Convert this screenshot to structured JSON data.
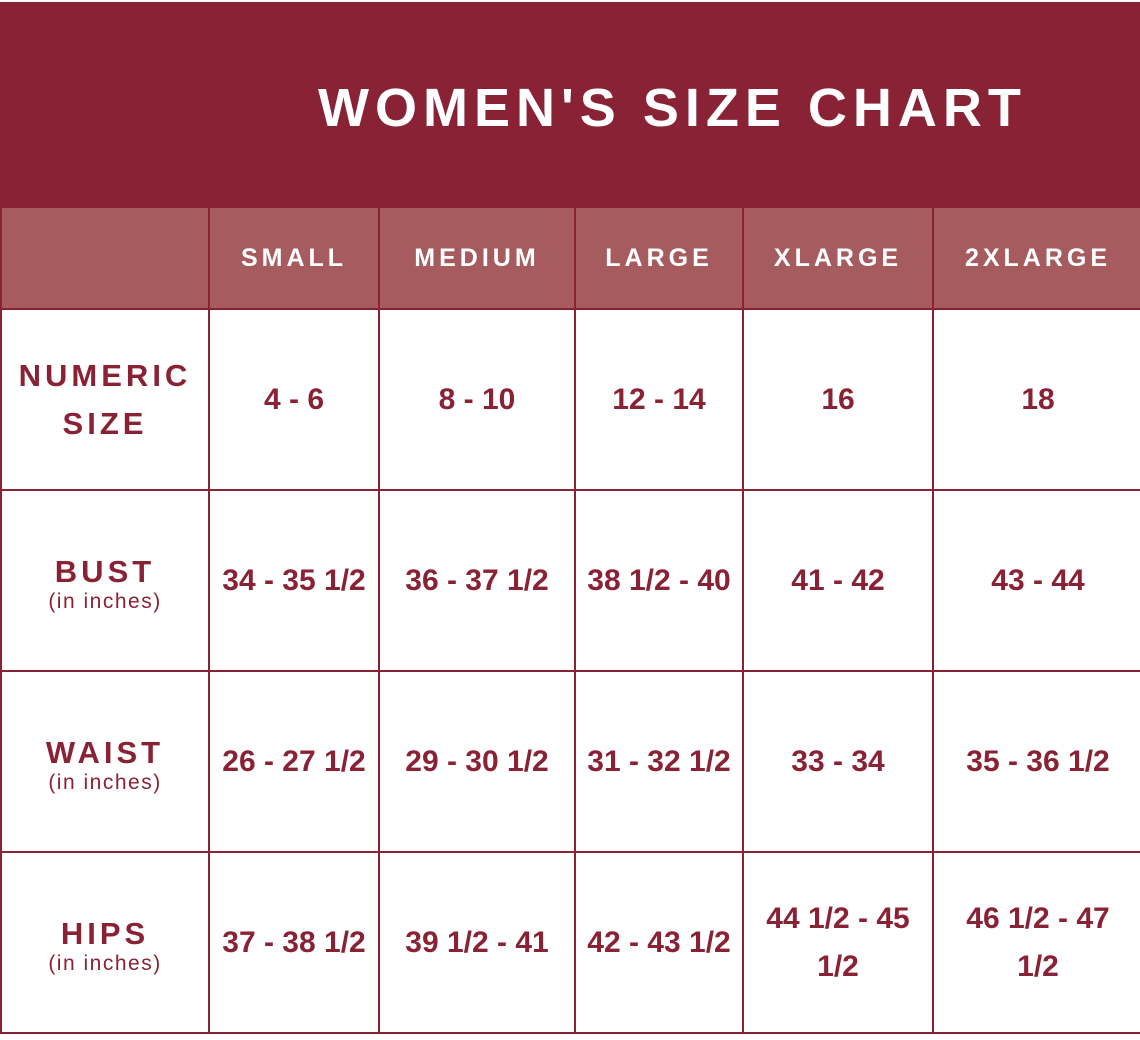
{
  "title": "WOMEN'S SIZE CHART",
  "colors": {
    "primary": "#8a2235",
    "header_row": "#a65c5e",
    "text_on_primary": "#ffffff"
  },
  "columns": [
    "",
    "SMALL",
    "MEDIUM",
    "LARGE",
    "XLARGE",
    "2XLARGE"
  ],
  "rows": [
    {
      "label": "NUMERIC SIZE",
      "unit": "",
      "values": [
        "4 - 6",
        "8 - 10",
        "12 - 14",
        "16",
        "18"
      ]
    },
    {
      "label": "BUST",
      "unit": "(in inches)",
      "values": [
        "34 - 35 1/2",
        "36 - 37 1/2",
        "38 1/2 - 40",
        "41 - 42",
        "43 - 44"
      ]
    },
    {
      "label": "WAIST",
      "unit": "(in inches)",
      "values": [
        "26 - 27 1/2",
        "29 - 30 1/2",
        "31 - 32 1/2",
        "33 - 34",
        "35 - 36 1/2"
      ]
    },
    {
      "label": "HIPS",
      "unit": "(in inches)",
      "values": [
        "37 - 38 1/2",
        "39 1/2 - 41",
        "42 - 43 1/2",
        "44 1/2 - 45 1/2",
        "46 1/2 - 47 1/2"
      ]
    }
  ]
}
